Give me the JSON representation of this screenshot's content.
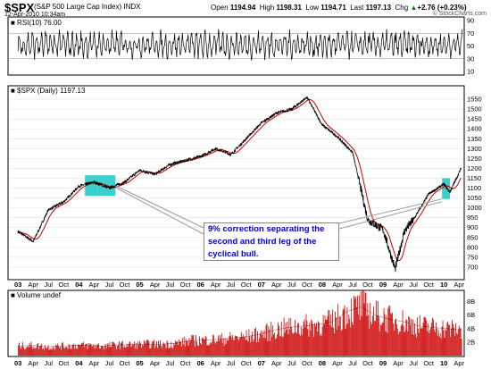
{
  "header": {
    "symbol": "$SPX",
    "description": "(S&P 500 Large Cap Index)",
    "exchange": "INDX",
    "date": "12-Apr-2010 10:34am",
    "open_label": "Open",
    "open": "1194.94",
    "high_label": "High",
    "high": "1198.31",
    "low_label": "Low",
    "low": "1194.71",
    "last_label": "Last",
    "last": "1197.13",
    "chg_label": "Chg",
    "chg": "+2.76 (+0.23%)",
    "chg_icon": "up-arrow-icon",
    "brand": "© StockCharts.com"
  },
  "rsi_panel": {
    "label": "■ RSI(10) 76.00"
  },
  "price_panel": {
    "label": "■ $SPX (Daily) 1197.13"
  },
  "volume_panel": {
    "label": "■ Volume undef"
  },
  "annotation": {
    "text": "9% correction separating the second and third leg of the cyclical bull.",
    "box_color": "#33cccc",
    "text_color": "#0000cc"
  },
  "colors": {
    "price_line": "#000000",
    "ma_line": "#cc0000",
    "volume_bar": "#cc0000",
    "rsi_band": "#bbbbbb"
  },
  "chart_data": [
    {
      "type": "line",
      "name": "RSI(10)",
      "ylim": [
        10,
        90
      ],
      "yticks": [
        10,
        30,
        50,
        70,
        90
      ],
      "reference_lines": [
        30,
        70
      ],
      "last": 76.0
    },
    {
      "type": "line",
      "title": "$SPX (Daily) 1197.13",
      "x": [
        2003.0,
        2003.25,
        2003.5,
        2003.75,
        2004.0,
        2004.25,
        2004.5,
        2004.75,
        2005.0,
        2005.25,
        2005.5,
        2005.75,
        2006.0,
        2006.25,
        2006.5,
        2006.75,
        2007.0,
        2007.25,
        2007.5,
        2007.75,
        2008.0,
        2008.25,
        2008.5,
        2008.75,
        2009.0,
        2009.2,
        2009.35,
        2009.5,
        2009.75,
        2010.0,
        2010.1,
        2010.28
      ],
      "values": [
        880,
        830,
        990,
        1030,
        1110,
        1130,
        1100,
        1130,
        1190,
        1170,
        1220,
        1240,
        1260,
        1300,
        1270,
        1350,
        1430,
        1480,
        1500,
        1560,
        1420,
        1360,
        1280,
        940,
        890,
        690,
        880,
        940,
        1070,
        1120,
        1080,
        1197
      ],
      "ylim": [
        650,
        1600
      ],
      "yticks": [
        700,
        750,
        800,
        850,
        900,
        950,
        1000,
        1050,
        1100,
        1150,
        1200,
        1250,
        1300,
        1350,
        1400,
        1450,
        1500,
        1550
      ],
      "x_tick_labels": [
        "03",
        "Apr",
        "Jul",
        "Oct",
        "04",
        "Apr",
        "Jul",
        "Oct",
        "05",
        "Apr",
        "Jul",
        "Oct",
        "06",
        "Apr",
        "Jul",
        "Oct",
        "07",
        "Apr",
        "Jul",
        "Oct",
        "08",
        "Apr",
        "Jul",
        "Oct",
        "09",
        "Apr",
        "Jul",
        "Oct",
        "10",
        "Apr"
      ],
      "highlights": [
        {
          "x_range": [
            2004.1,
            2004.6
          ],
          "y_range": [
            1060,
            1165
          ]
        },
        {
          "x_range": [
            2009.97,
            2010.1
          ],
          "y_range": [
            1045,
            1150
          ]
        }
      ]
    },
    {
      "type": "bar",
      "name": "Volume",
      "yticks_label": [
        "2B",
        "4B",
        "6B",
        "8B"
      ],
      "ylim": [
        0,
        9
      ],
      "values_billions": [
        1.4,
        1.5,
        1.3,
        1.4,
        1.5,
        1.5,
        1.4,
        1.6,
        1.6,
        1.7,
        1.7,
        1.8,
        2.2,
        2.3,
        2.4,
        2.6,
        2.8,
        3.2,
        3.8,
        4.2,
        4.4,
        4.6,
        5.0,
        6.5,
        7.2,
        6.0,
        5.4,
        5.0,
        4.4,
        4.2,
        4.0,
        3.8
      ]
    }
  ]
}
